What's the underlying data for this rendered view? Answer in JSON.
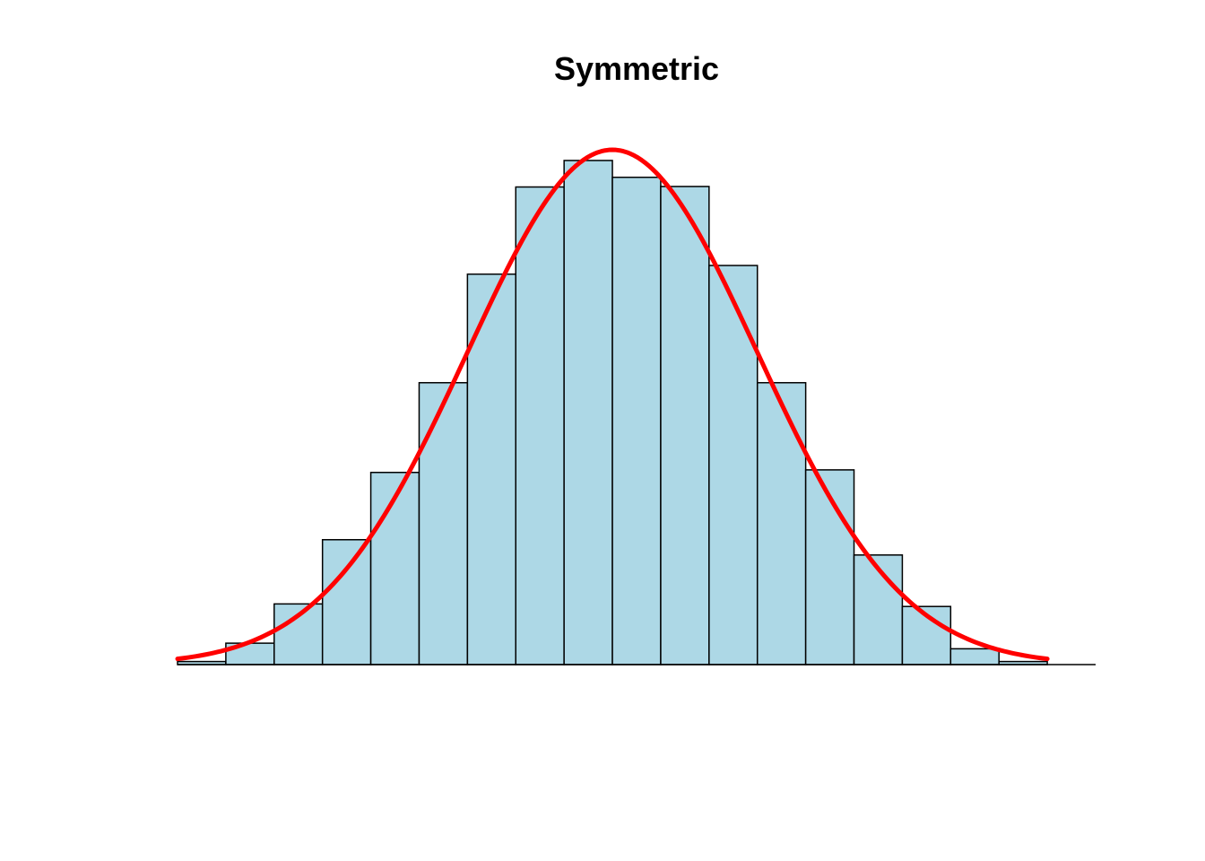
{
  "chart_data": {
    "type": "bar",
    "title": "Symmetric",
    "xlabel": "",
    "ylabel": "",
    "bins": [
      {
        "x0": 0,
        "x1": 1,
        "value": 0.06
      },
      {
        "x0": 1,
        "x1": 2,
        "value": 0.42
      },
      {
        "x0": 2,
        "x1": 3,
        "value": 1.19
      },
      {
        "x0": 3,
        "x1": 4,
        "value": 2.45
      },
      {
        "x0": 4,
        "x1": 5,
        "value": 3.77
      },
      {
        "x0": 5,
        "x1": 6,
        "value": 5.53
      },
      {
        "x0": 6,
        "x1": 7,
        "value": 7.66
      },
      {
        "x0": 7,
        "x1": 8,
        "value": 9.37
      },
      {
        "x0": 8,
        "x1": 9,
        "value": 9.89
      },
      {
        "x0": 9,
        "x1": 10,
        "value": 9.56
      },
      {
        "x0": 10,
        "x1": 11,
        "value": 9.38
      },
      {
        "x0": 11,
        "x1": 12,
        "value": 7.83
      },
      {
        "x0": 12,
        "x1": 13,
        "value": 5.53
      },
      {
        "x0": 13,
        "x1": 14,
        "value": 3.82
      },
      {
        "x0": 14,
        "x1": 15,
        "value": 2.15
      },
      {
        "x0": 15,
        "x1": 16,
        "value": 1.14
      },
      {
        "x0": 16,
        "x1": 17,
        "value": 0.31
      },
      {
        "x0": 17,
        "x1": 18,
        "value": 0.06
      }
    ],
    "curve": {
      "type": "normal-density",
      "mean": 9,
      "sd": 3,
      "peak": 10.1,
      "x_from": 0,
      "x_to": 18
    },
    "xlim": [
      0,
      19
    ],
    "ylim": [
      0,
      10.1
    ],
    "axes_shown": false,
    "grid": false,
    "colors": {
      "bar_fill": "#ADD8E6",
      "bar_stroke": "#000000",
      "curve": "#FF0000",
      "baseline": "#000000"
    }
  }
}
